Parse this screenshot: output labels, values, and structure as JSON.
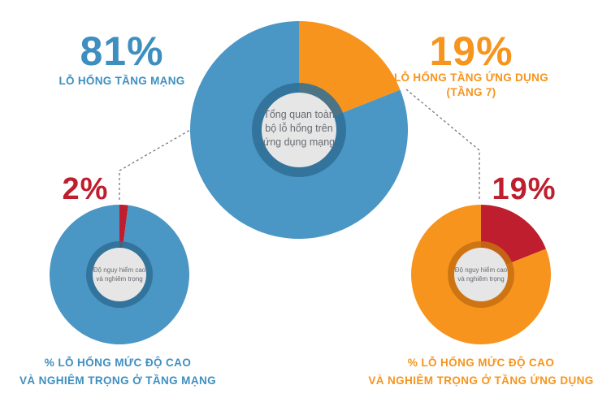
{
  "colors": {
    "blue": "#4a96c4",
    "blue_ring": "#2f6f97",
    "orange": "#f7941d",
    "orange_ring": "#c86f12",
    "red": "#be1e2d",
    "red_ring": "#8d1520",
    "center_fill": "#e6e6e6",
    "leader": "#777777"
  },
  "main": {
    "left_percent": "81%",
    "left_label": "LỖ HỔNG TẦNG MẠNG",
    "right_percent": "19%",
    "right_label_line1": "LỖ HỔNG TẦNG ỨNG DỤNG",
    "right_label_line2": "(TẦNG 7)",
    "center_line1": "Tổng quan toàn",
    "center_line2": "bộ lỗ hổng trên",
    "center_line3": "ứng dụng mạng"
  },
  "network": {
    "percent": "2%",
    "center_line1": "Độ nguy hiểm cao",
    "center_line2": "và nghiêm trọng",
    "caption_line1": "% LỖ HỔNG MỨC ĐỘ CAO",
    "caption_line2": "VÀ NGHIÊM TRỌNG Ở TẦNG MẠNG"
  },
  "application": {
    "percent": "19%",
    "center_line1": "Độ nguy hiểm cao",
    "center_line2": "và nghiêm trọng",
    "caption_line1": "% LỖ HỔNG MỨC ĐỘ CAO",
    "caption_line2": "VÀ NGHIÊM TRỌNG Ở TẦNG ỨNG DỤNG"
  },
  "chart_data": [
    {
      "type": "pie",
      "categories": [
        "LỖ HỔNG TẦNG MẠNG",
        "LỖ HỔNG TẦNG ỨNG DỤNG (TẦNG 7)"
      ],
      "values": [
        81,
        19
      ],
      "colors": [
        "#4a96c4",
        "#f7941d"
      ],
      "title": ""
    },
    {
      "type": "pie",
      "categories": [
        "Độ nguy hiểm cao và nghiêm trọng",
        ""
      ],
      "values": [
        2,
        98
      ],
      "colors": [
        "#be1e2d",
        "#4a96c4"
      ],
      "title": ""
    },
    {
      "type": "pie",
      "categories": [
        "Độ nguy hiểm cao và nghiêm trọng",
        ""
      ],
      "values": [
        19,
        81
      ],
      "colors": [
        "#be1e2d",
        "#f7941d"
      ],
      "title": ""
    }
  ]
}
